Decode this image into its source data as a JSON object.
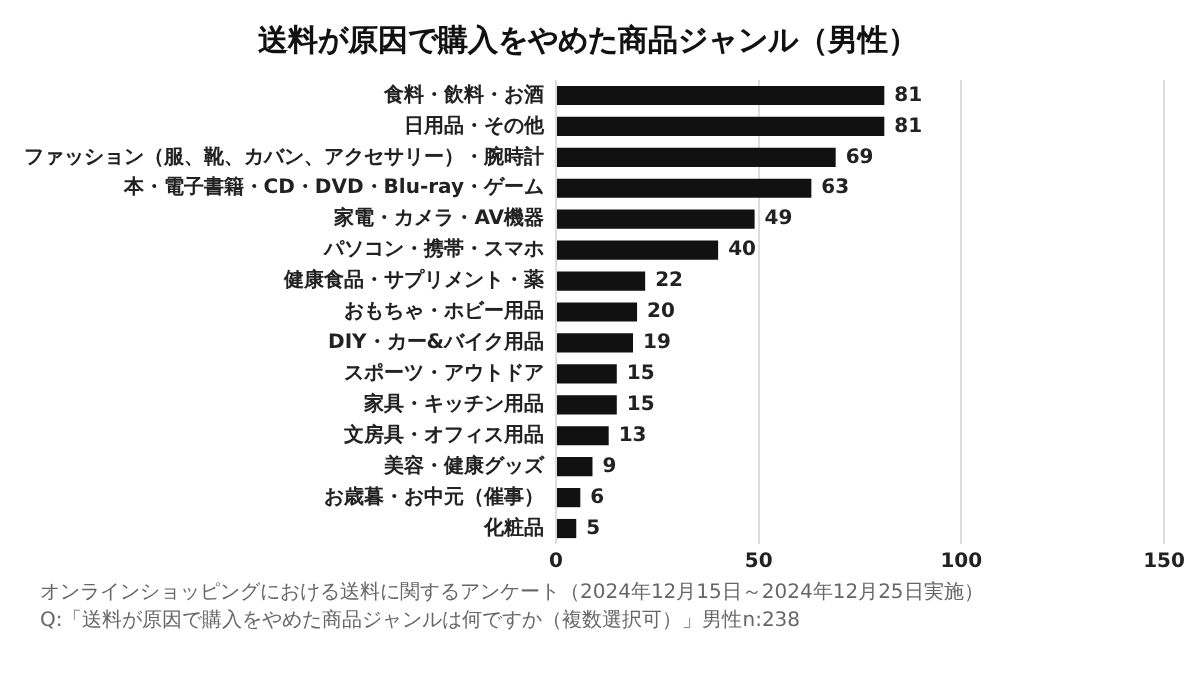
{
  "chart_data": {
    "type": "bar",
    "orientation": "horizontal",
    "title": "送料が原因で購入をやめた商品ジャンル（男性）",
    "categories": [
      "食料・飲料・お酒",
      "日用品・その他",
      "ファッション（服、靴、カバン、アクセサリー）・腕時計",
      "本・電子書籍・CD・DVD・Blu-ray・ゲーム",
      "家電・カメラ・AV機器",
      "パソコン・携帯・スマホ",
      "健康食品・サプリメント・薬",
      "おもちゃ・ホビー用品",
      "DIY・カー&バイク用品",
      "スポーツ・アウトドア",
      "家具・キッチン用品",
      "文房具・オフィス用品",
      "美容・健康グッズ",
      "お歳暮・お中元（催事）",
      "化粧品"
    ],
    "values": [
      81,
      81,
      69,
      63,
      49,
      40,
      22,
      20,
      19,
      15,
      15,
      13,
      9,
      6,
      5
    ],
    "color": "#111111",
    "xlim": [
      0,
      150
    ],
    "xticks": [
      0,
      50,
      100,
      150
    ],
    "grid": "x",
    "data_labels": true,
    "legend": false,
    "annotations": [
      "オンラインショッピングにおける送料に関するアンケート（2024年12月15日～2024年12月25日実施）",
      "Q:「送料が原因で購入をやめた商品ジャンルは何ですか（複数選択可）」男性n:238"
    ]
  }
}
